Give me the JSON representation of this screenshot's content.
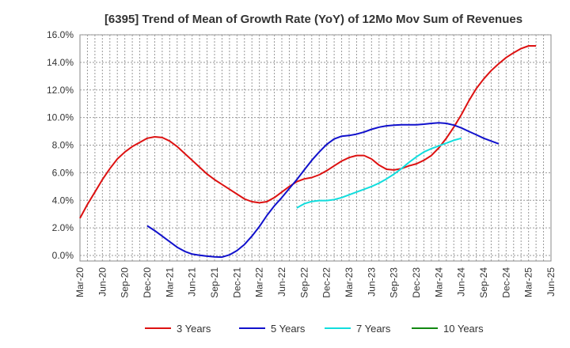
{
  "chart_data": {
    "type": "line",
    "title": "[6395]  Trend of Mean of Growth Rate (YoY) of 12Mo Mov Sum of Revenues",
    "xlabel": "",
    "ylabel": "",
    "ylim": [
      -0.4,
      16.0
    ],
    "y_ticks": [
      0.0,
      2.0,
      4.0,
      6.0,
      8.0,
      10.0,
      12.0,
      14.0,
      16.0
    ],
    "y_tick_labels": [
      "0.0%",
      "2.0%",
      "4.0%",
      "6.0%",
      "8.0%",
      "10.0%",
      "12.0%",
      "14.0%",
      "16.0%"
    ],
    "x_tick_labels": [
      "Mar-20",
      "Jun-20",
      "Sep-20",
      "Dec-20",
      "Mar-21",
      "Jun-21",
      "Sep-21",
      "Dec-21",
      "Mar-22",
      "Jun-22",
      "Sep-22",
      "Dec-22",
      "Mar-23",
      "Jun-23",
      "Sep-23",
      "Dec-23",
      "Mar-24",
      "Jun-24",
      "Sep-24",
      "Dec-24",
      "Mar-25",
      "Jun-25"
    ],
    "x_unit": "months since Mar-20",
    "x_range": [
      0,
      63
    ],
    "grid": true,
    "legend_position": "bottom",
    "series": [
      {
        "name": "3 Years",
        "color": "#dd1111",
        "points": [
          [
            0,
            2.7
          ],
          [
            1,
            3.7
          ],
          [
            2,
            4.6
          ],
          [
            3,
            5.5
          ],
          [
            4,
            6.3
          ],
          [
            5,
            7.0
          ],
          [
            6,
            7.5
          ],
          [
            7,
            7.9
          ],
          [
            8,
            8.2
          ],
          [
            9,
            8.5
          ],
          [
            10,
            8.6
          ],
          [
            11,
            8.55
          ],
          [
            12,
            8.3
          ],
          [
            13,
            7.9
          ],
          [
            14,
            7.4
          ],
          [
            15,
            6.9
          ],
          [
            16,
            6.4
          ],
          [
            17,
            5.9
          ],
          [
            18,
            5.5
          ],
          [
            19,
            5.15
          ],
          [
            20,
            4.8
          ],
          [
            21,
            4.45
          ],
          [
            22,
            4.1
          ],
          [
            23,
            3.9
          ],
          [
            24,
            3.82
          ],
          [
            25,
            3.9
          ],
          [
            26,
            4.2
          ],
          [
            27,
            4.6
          ],
          [
            28,
            5.0
          ],
          [
            29,
            5.35
          ],
          [
            30,
            5.55
          ],
          [
            31,
            5.65
          ],
          [
            32,
            5.85
          ],
          [
            33,
            6.15
          ],
          [
            34,
            6.5
          ],
          [
            35,
            6.85
          ],
          [
            36,
            7.1
          ],
          [
            37,
            7.25
          ],
          [
            38,
            7.25
          ],
          [
            39,
            7.0
          ],
          [
            40,
            6.55
          ],
          [
            41,
            6.25
          ],
          [
            42,
            6.2
          ],
          [
            43,
            6.3
          ],
          [
            44,
            6.5
          ],
          [
            45,
            6.65
          ],
          [
            46,
            6.9
          ],
          [
            47,
            7.25
          ],
          [
            48,
            7.8
          ],
          [
            49,
            8.5
          ],
          [
            50,
            9.3
          ],
          [
            51,
            10.2
          ],
          [
            52,
            11.2
          ],
          [
            53,
            12.1
          ],
          [
            54,
            12.8
          ],
          [
            55,
            13.4
          ],
          [
            56,
            13.9
          ],
          [
            57,
            14.35
          ],
          [
            58,
            14.7
          ],
          [
            59,
            15.0
          ],
          [
            60,
            15.2
          ],
          [
            61,
            15.2
          ]
        ]
      },
      {
        "name": "5 Years",
        "color": "#1111cc",
        "points": [
          [
            9,
            2.15
          ],
          [
            10,
            1.8
          ],
          [
            11,
            1.4
          ],
          [
            12,
            1.0
          ],
          [
            13,
            0.6
          ],
          [
            14,
            0.3
          ],
          [
            15,
            0.1
          ],
          [
            16,
            0.02
          ],
          [
            17,
            -0.05
          ],
          [
            18,
            -0.1
          ],
          [
            19,
            -0.12
          ],
          [
            20,
            0.05
          ],
          [
            21,
            0.35
          ],
          [
            22,
            0.8
          ],
          [
            23,
            1.4
          ],
          [
            24,
            2.1
          ],
          [
            25,
            2.9
          ],
          [
            26,
            3.6
          ],
          [
            27,
            4.2
          ],
          [
            28,
            4.85
          ],
          [
            29,
            5.5
          ],
          [
            30,
            6.2
          ],
          [
            31,
            6.9
          ],
          [
            32,
            7.5
          ],
          [
            33,
            8.05
          ],
          [
            34,
            8.45
          ],
          [
            35,
            8.65
          ],
          [
            36,
            8.7
          ],
          [
            37,
            8.8
          ],
          [
            38,
            8.95
          ],
          [
            39,
            9.15
          ],
          [
            40,
            9.3
          ],
          [
            41,
            9.4
          ],
          [
            42,
            9.45
          ],
          [
            43,
            9.48
          ],
          [
            44,
            9.48
          ],
          [
            45,
            9.48
          ],
          [
            46,
            9.52
          ],
          [
            47,
            9.58
          ],
          [
            48,
            9.62
          ],
          [
            49,
            9.58
          ],
          [
            50,
            9.45
          ],
          [
            51,
            9.25
          ],
          [
            52,
            9.0
          ],
          [
            53,
            8.75
          ],
          [
            54,
            8.5
          ],
          [
            55,
            8.3
          ],
          [
            56,
            8.1
          ]
        ]
      },
      {
        "name": "7 Years",
        "color": "#11dddd",
        "points": [
          [
            29,
            3.45
          ],
          [
            30,
            3.75
          ],
          [
            31,
            3.92
          ],
          [
            32,
            3.98
          ],
          [
            33,
            3.98
          ],
          [
            34,
            4.05
          ],
          [
            35,
            4.2
          ],
          [
            36,
            4.4
          ],
          [
            37,
            4.6
          ],
          [
            38,
            4.8
          ],
          [
            39,
            5.0
          ],
          [
            40,
            5.25
          ],
          [
            41,
            5.55
          ],
          [
            42,
            5.9
          ],
          [
            43,
            6.3
          ],
          [
            44,
            6.75
          ],
          [
            45,
            7.15
          ],
          [
            46,
            7.5
          ],
          [
            47,
            7.75
          ],
          [
            48,
            7.95
          ],
          [
            49,
            8.15
          ],
          [
            50,
            8.35
          ],
          [
            51,
            8.5
          ]
        ]
      },
      {
        "name": "10 Years",
        "color": "#118811",
        "points": []
      }
    ]
  }
}
